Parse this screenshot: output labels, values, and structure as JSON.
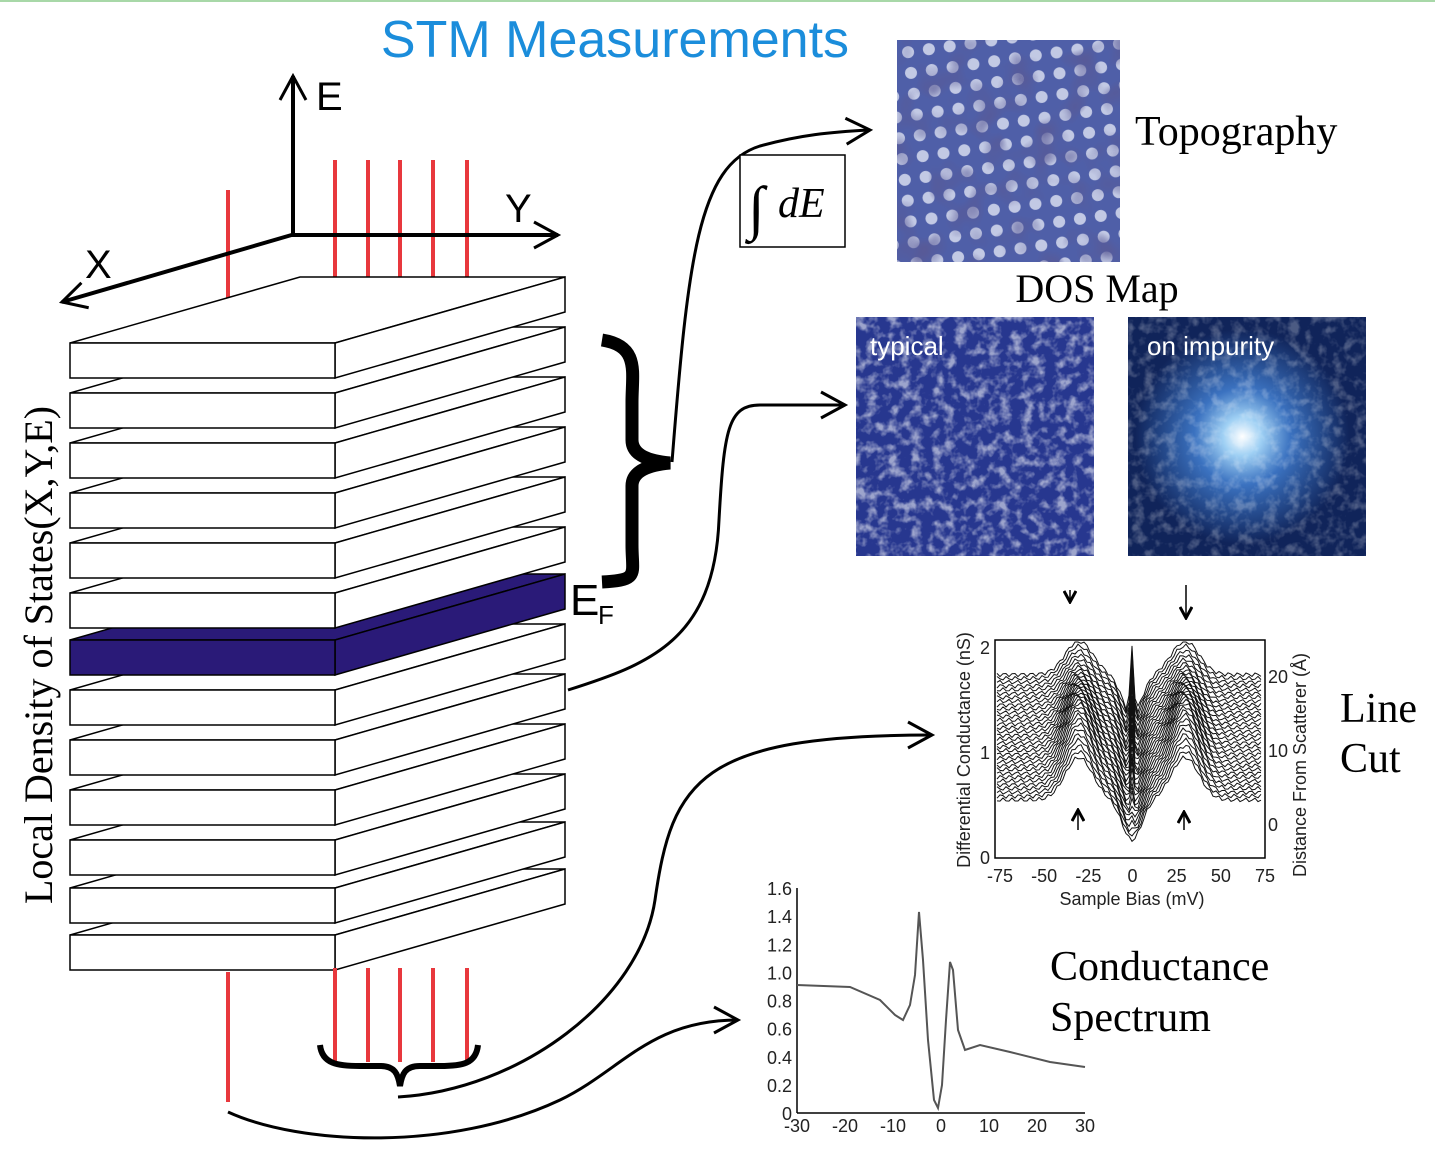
{
  "title": "STM Measurements",
  "axes": {
    "e": "E",
    "y": "Y",
    "x": "X"
  },
  "stack_label": "Local Density of States(X,Y,E)",
  "fermi": {
    "symbol": "E",
    "subscript": "F"
  },
  "integral": {
    "symbol": "∫",
    "text": "dE"
  },
  "topography": "Topography",
  "dos_map": {
    "title": "DOS Map",
    "typical": "typical",
    "impurity": "on impurity"
  },
  "line_cut": {
    "label": [
      "Line",
      "Cut"
    ],
    "y_label": "Differential Conductance (nS)",
    "y2_label": "Distance From Scatterer (Å)",
    "x_label": "Sample Bias (mV)",
    "xticks": [
      "-75",
      "-50",
      "-25",
      "0",
      "25",
      "50",
      "75"
    ],
    "yticks": [
      "0",
      "1",
      "2"
    ],
    "y2ticks": [
      "0",
      "10",
      "20"
    ]
  },
  "spectrum": {
    "label": [
      "Conductance",
      "Spectrum"
    ],
    "xticks": [
      "-30",
      "-20",
      "-10",
      "0",
      "10",
      "20",
      "30"
    ],
    "yticks": [
      "0",
      "0.2",
      "0.4",
      "0.6",
      "0.8",
      "1.0",
      "1.2",
      "1.4",
      "1.6"
    ]
  }
}
